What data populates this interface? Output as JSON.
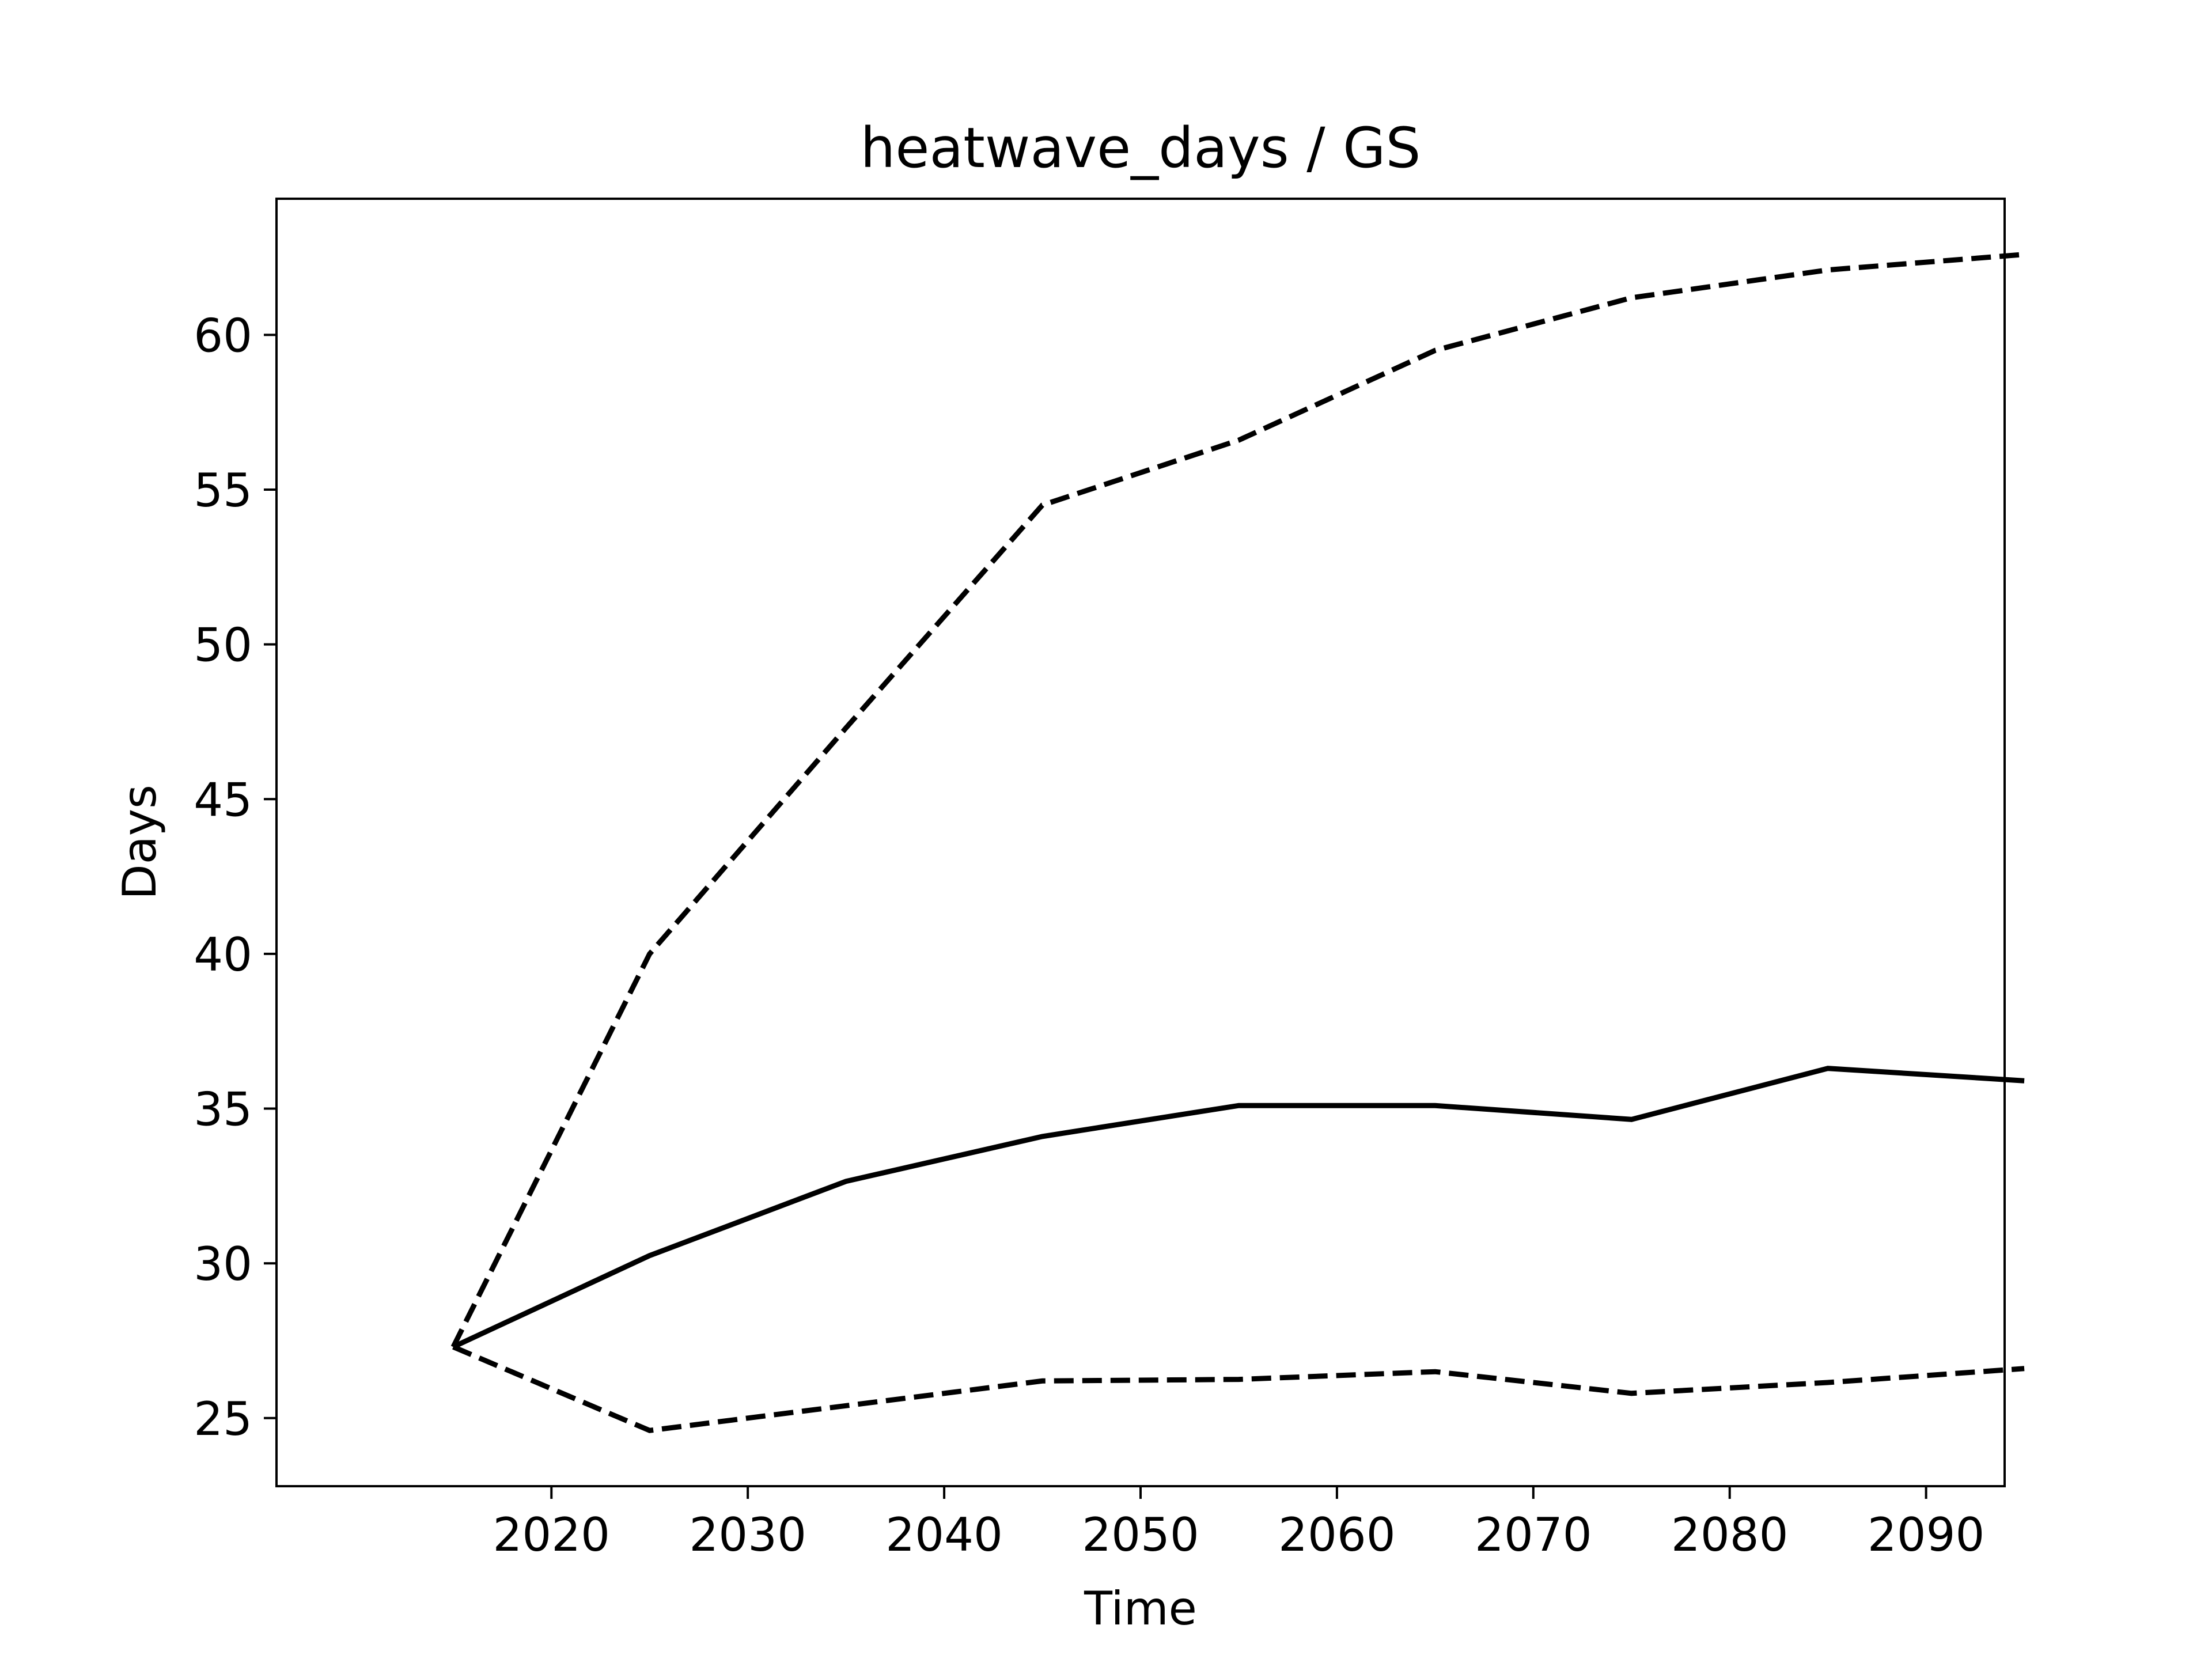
{
  "chart_data": {
    "type": "line",
    "title": "heatwave_days / GS",
    "xlabel": "Time",
    "ylabel": "Days",
    "x": [
      2015,
      2025,
      2035,
      2045,
      2055,
      2065,
      2075,
      2085,
      2095
    ],
    "xlim": [
      2006,
      2094
    ],
    "ylim": [
      22.8,
      64.4
    ],
    "xticks": [
      2020,
      2030,
      2040,
      2050,
      2060,
      2070,
      2080,
      2090
    ],
    "yticks": [
      25,
      30,
      35,
      40,
      45,
      50,
      55,
      60
    ],
    "grid": false,
    "series": [
      {
        "style": "solid",
        "color": "#000000",
        "values": [
          27.3,
          30.25,
          32.65,
          34.1,
          35.1,
          35.1,
          34.65,
          36.3,
          35.9
        ]
      },
      {
        "style": "dashed",
        "color": "#000000",
        "values": [
          27.3,
          40.0,
          47.3,
          54.5,
          56.6,
          59.5,
          61.2,
          62.1,
          62.6
        ]
      },
      {
        "style": "dashed",
        "color": "#000000",
        "values": [
          27.3,
          24.6,
          25.4,
          26.2,
          26.25,
          26.5,
          25.8,
          26.15,
          26.6
        ]
      }
    ]
  }
}
